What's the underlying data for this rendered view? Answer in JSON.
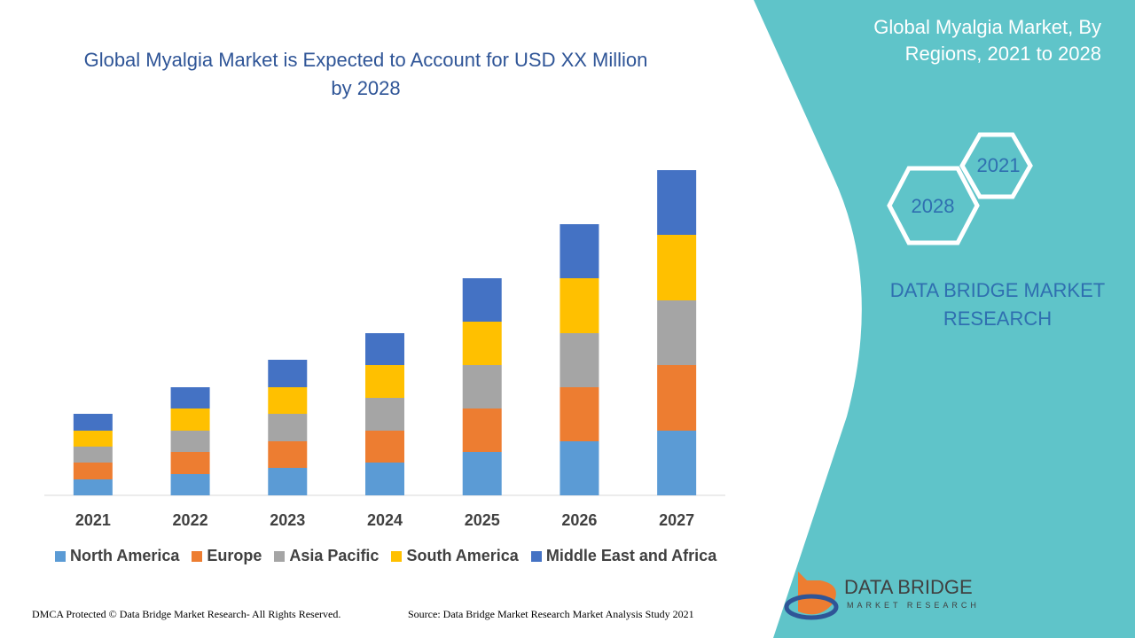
{
  "chart_data": {
    "type": "bar",
    "stacked": true,
    "title": "Global Myalgia Market is Expected to Account for USD XX Million by 2028",
    "categories": [
      "2021",
      "2022",
      "2023",
      "2024",
      "2025",
      "2026",
      "2027"
    ],
    "series": [
      {
        "name": "North America",
        "color": "#5b9bd5",
        "values": [
          18,
          24,
          31,
          37,
          49,
          61,
          73
        ]
      },
      {
        "name": "Europe",
        "color": "#ed7d31",
        "values": [
          19,
          25,
          30,
          36,
          49,
          61,
          74
        ]
      },
      {
        "name": "Asia Pacific",
        "color": "#a5a5a5",
        "values": [
          18,
          24,
          31,
          37,
          49,
          61,
          73
        ]
      },
      {
        "name": "South America",
        "color": "#ffc000",
        "values": [
          18,
          25,
          30,
          37,
          49,
          62,
          74
        ]
      },
      {
        "name": "Middle East and Africa",
        "color": "#4472c4",
        "values": [
          19,
          24,
          31,
          36,
          49,
          61,
          73
        ]
      }
    ],
    "legend": "bottom"
  },
  "panel": {
    "title": "Global Myalgia Market, By Regions, 2021 to 2028",
    "hex_start": "2021",
    "hex_end": "2028",
    "brand": "DATA BRIDGE MARKET RESEARCH"
  },
  "logo": {
    "name": "DATA BRIDGE",
    "tagline": "MARKET RESEARCH"
  },
  "footer": {
    "left": "DMCA Protected © Data Bridge Market Research- All Rights Reserved.",
    "right": "Source: Data Bridge Market Research Market Analysis Study 2021"
  }
}
